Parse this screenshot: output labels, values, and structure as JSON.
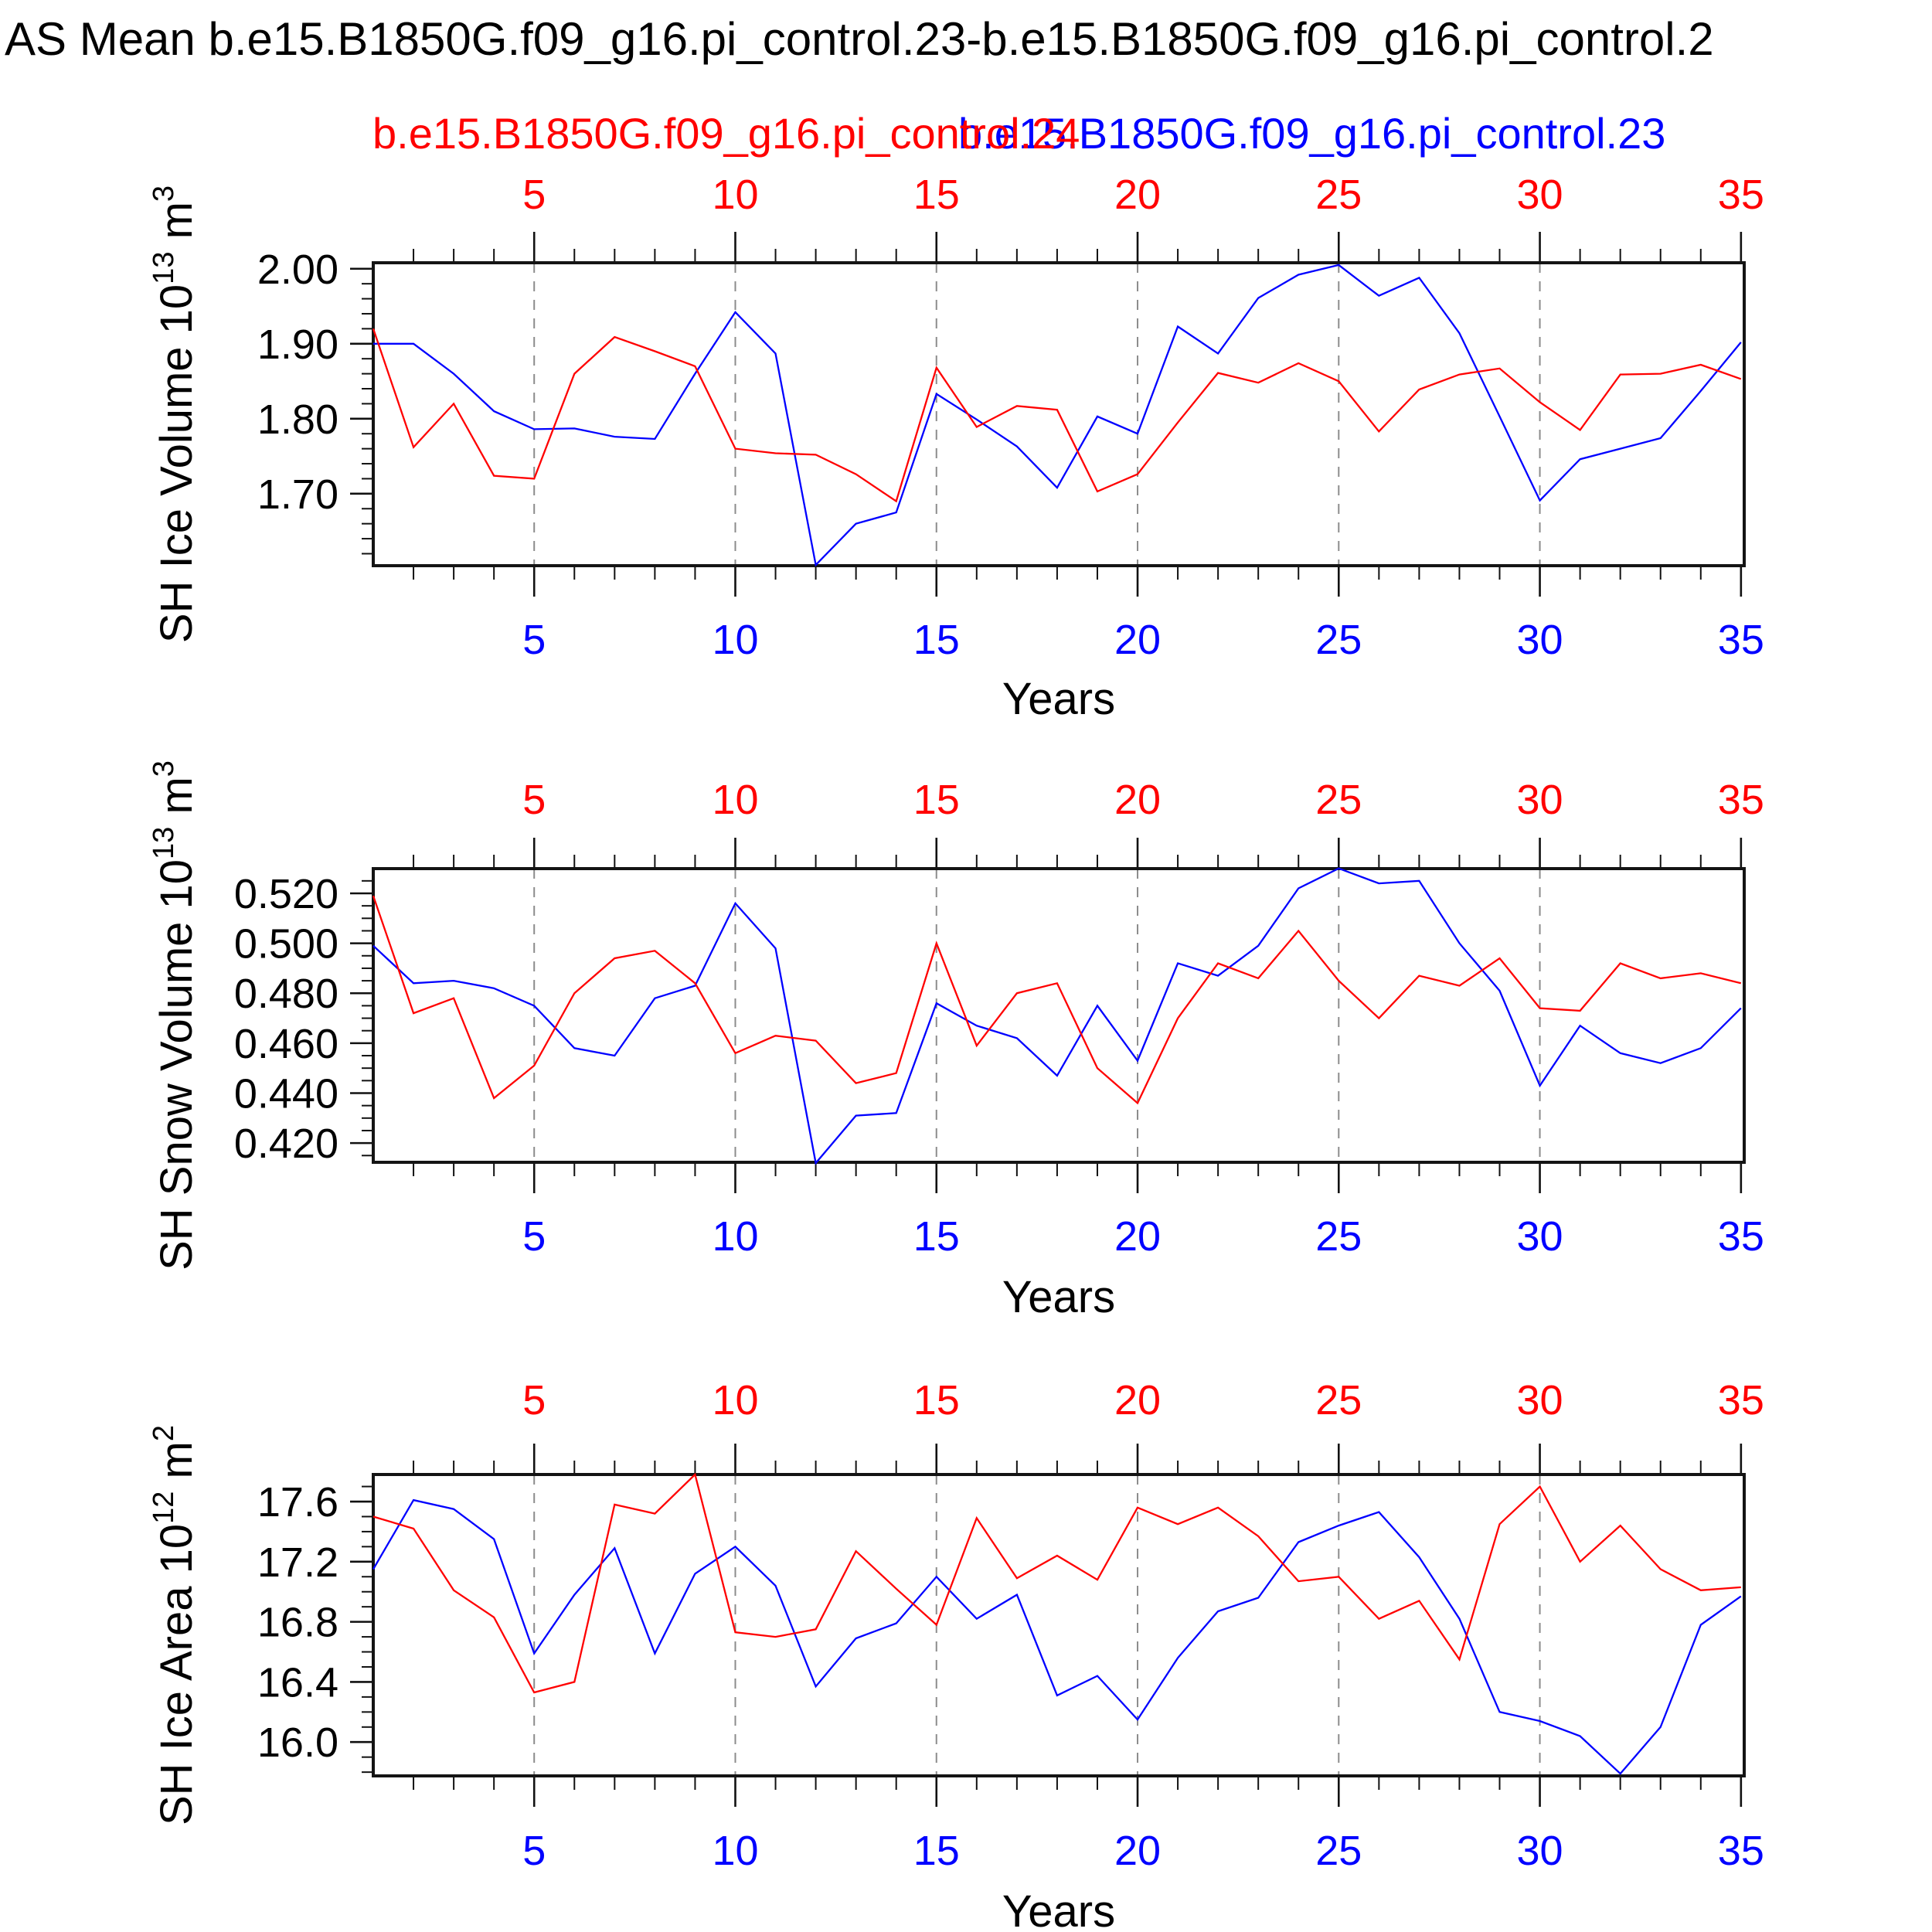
{
  "title": "AS Mean b.e15.B1850G.f09_g16.pi_control.23-b.e15.B1850G.f09_g16.pi_control.2",
  "legend": {
    "series_red_label": "b.e15.B1850G.f09_g16.pi_control.24",
    "series_blue_label": "b.e15.B1850G.f09_g16.pi_control.23",
    "red_color": "#ff0000",
    "blue_color": "#0000ff"
  },
  "chart_data": [
    {
      "type": "line",
      "title": "",
      "ylabel": "SH Ice Volume 10^13 m^3",
      "ylabel_parts": [
        [
          "t",
          "SH Ice Volume 10"
        ],
        [
          "s",
          "13"
        ],
        [
          "t",
          " m"
        ],
        [
          "s",
          "3"
        ]
      ],
      "xlabel": "Years",
      "xlim": [
        1,
        35.08
      ],
      "ylim": [
        1.604,
        2.008
      ],
      "x": [
        1,
        2,
        3,
        4,
        5,
        6,
        7,
        8,
        9,
        10,
        11,
        12,
        13,
        14,
        15,
        16,
        17,
        18,
        19,
        20,
        21,
        22,
        23,
        24,
        25,
        26,
        27,
        28,
        29,
        30,
        31,
        32,
        33,
        34,
        35
      ],
      "xtick_major": [
        5,
        10,
        15,
        20,
        25,
        30,
        35
      ],
      "xtick_labels": [
        "5",
        "10",
        "15",
        "20",
        "25",
        "30",
        "35"
      ],
      "grid_years": [
        5,
        10,
        15,
        20,
        25,
        30
      ],
      "ytick_values": [
        2.0,
        1.9,
        1.8,
        1.7
      ],
      "ytick_labels": [
        "2.00",
        "1.90",
        "1.80",
        "1.70"
      ],
      "yminor_step": 0.02,
      "grid_on": "dashed-vertical",
      "legend_position": "top-overlapping",
      "series": [
        {
          "name": "b.e15.B1850G.f09_g16.pi_control.24",
          "color": "#ff0000",
          "values": [
            1.92,
            1.762,
            1.82,
            1.724,
            1.72,
            1.86,
            1.909,
            1.89,
            1.87,
            1.76,
            1.754,
            1.752,
            1.726,
            1.69,
            1.868,
            1.789,
            1.817,
            1.812,
            1.703,
            1.726,
            1.795,
            1.861,
            1.848,
            1.874,
            1.85,
            1.783,
            1.839,
            1.859,
            1.867,
            1.822,
            1.785,
            1.859,
            1.86,
            1.872,
            1.853
          ]
        },
        {
          "name": "b.e15.B1850G.f09_g16.pi_control.23",
          "color": "#0000ff",
          "values": [
            1.9,
            1.9,
            1.86,
            1.81,
            1.786,
            1.787,
            1.776,
            1.773,
            1.86,
            1.942,
            1.887,
            1.605,
            1.66,
            1.675,
            1.833,
            1.799,
            1.763,
            1.708,
            1.803,
            1.78,
            1.923,
            1.887,
            1.961,
            1.992,
            2.005,
            1.964,
            1.988,
            1.914,
            1.803,
            1.691,
            1.746,
            1.76,
            1.774,
            1.837,
            1.902
          ]
        }
      ]
    },
    {
      "type": "line",
      "title": "",
      "ylabel": "SH Snow Volume 10^13 m^3",
      "ylabel_parts": [
        [
          "t",
          "SH Snow Volume 10"
        ],
        [
          "s",
          "13"
        ],
        [
          "t",
          " m"
        ],
        [
          "s",
          "3"
        ]
      ],
      "xlabel": "Years",
      "xlim": [
        1,
        35.08
      ],
      "ylim": [
        0.4123,
        0.5299
      ],
      "x": [
        1,
        2,
        3,
        4,
        5,
        6,
        7,
        8,
        9,
        10,
        11,
        12,
        13,
        14,
        15,
        16,
        17,
        18,
        19,
        20,
        21,
        22,
        23,
        24,
        25,
        26,
        27,
        28,
        29,
        30,
        31,
        32,
        33,
        34,
        35
      ],
      "xtick_major": [
        5,
        10,
        15,
        20,
        25,
        30,
        35
      ],
      "xtick_labels": [
        "5",
        "10",
        "15",
        "20",
        "25",
        "30",
        "35"
      ],
      "grid_years": [
        5,
        10,
        15,
        20,
        25,
        30
      ],
      "ytick_values": [
        0.52,
        0.5,
        0.48,
        0.46,
        0.44,
        0.42
      ],
      "ytick_labels": [
        "0.520",
        "0.500",
        "0.480",
        "0.460",
        "0.440",
        "0.420"
      ],
      "yminor_step": 0.005,
      "grid_on": "dashed-vertical",
      "legend_position": "top-overlapping",
      "series": [
        {
          "name": "b.e15.B1850G.f09_g16.pi_control.24",
          "color": "#ff0000",
          "values": [
            0.519,
            0.472,
            0.478,
            0.438,
            0.451,
            0.48,
            0.494,
            0.497,
            0.484,
            0.456,
            0.463,
            0.461,
            0.444,
            0.448,
            0.5,
            0.459,
            0.48,
            0.484,
            0.45,
            0.436,
            0.47,
            0.492,
            0.486,
            0.505,
            0.485,
            0.47,
            0.487,
            0.483,
            0.494,
            0.474,
            0.473,
            0.492,
            0.486,
            0.488,
            0.484
          ]
        },
        {
          "name": "b.e15.B1850G.f09_g16.pi_control.23",
          "color": "#0000ff",
          "values": [
            0.499,
            0.484,
            0.485,
            0.482,
            0.475,
            0.458,
            0.455,
            0.478,
            0.483,
            0.516,
            0.498,
            0.412,
            0.431,
            0.432,
            0.476,
            0.467,
            0.462,
            0.447,
            0.475,
            0.453,
            0.492,
            0.487,
            0.499,
            0.522,
            0.53,
            0.524,
            0.525,
            0.5,
            0.481,
            0.443,
            0.467,
            0.456,
            0.452,
            0.458,
            0.474
          ]
        }
      ]
    },
    {
      "type": "line",
      "title": "",
      "ylabel": "SH Ice Area 10^12 m^2",
      "ylabel_parts": [
        [
          "t",
          "SH Ice Area 10"
        ],
        [
          "s",
          "12"
        ],
        [
          "t",
          " m"
        ],
        [
          "s",
          "2"
        ]
      ],
      "xlabel": "Years",
      "xlim": [
        1,
        35.08
      ],
      "ylim": [
        15.775,
        17.78
      ],
      "x": [
        1,
        2,
        3,
        4,
        5,
        6,
        7,
        8,
        9,
        10,
        11,
        12,
        13,
        14,
        15,
        16,
        17,
        18,
        19,
        20,
        21,
        22,
        23,
        24,
        25,
        26,
        27,
        28,
        29,
        30,
        31,
        32,
        33,
        34,
        35
      ],
      "xtick_major": [
        5,
        10,
        15,
        20,
        25,
        30,
        35
      ],
      "xtick_labels": [
        "5",
        "10",
        "15",
        "20",
        "25",
        "30",
        "35"
      ],
      "grid_years": [
        5,
        10,
        15,
        20,
        25,
        30
      ],
      "ytick_values": [
        17.6,
        17.2,
        16.8,
        16.4,
        16.0
      ],
      "ytick_labels": [
        "17.6",
        "17.2",
        "16.8",
        "16.4",
        "16.0"
      ],
      "yminor_step": 0.1,
      "grid_on": "dashed-vertical",
      "legend_position": "top-overlapping",
      "series": [
        {
          "name": "b.e15.B1850G.f09_g16.pi_control.24",
          "color": "#ff0000",
          "values": [
            17.5,
            17.42,
            17.01,
            16.83,
            16.33,
            16.4,
            17.58,
            17.52,
            17.78,
            16.73,
            16.7,
            16.75,
            17.27,
            17.02,
            16.78,
            17.49,
            17.09,
            17.24,
            17.08,
            17.56,
            17.45,
            17.56,
            17.37,
            17.07,
            17.1,
            16.82,
            16.94,
            16.55,
            17.45,
            17.7,
            17.2,
            17.44,
            17.15,
            17.01,
            17.03
          ]
        },
        {
          "name": "b.e15.B1850G.f09_g16.pi_control.23",
          "color": "#0000ff",
          "values": [
            17.15,
            17.61,
            17.55,
            17.35,
            16.59,
            16.98,
            17.29,
            16.59,
            17.12,
            17.3,
            17.04,
            16.37,
            16.69,
            16.79,
            17.1,
            16.82,
            16.98,
            16.31,
            16.44,
            16.15,
            16.56,
            16.87,
            16.96,
            17.33,
            17.44,
            17.53,
            17.23,
            16.82,
            16.2,
            16.14,
            16.04,
            15.79,
            16.1,
            16.78,
            16.97
          ]
        }
      ]
    }
  ],
  "style": {
    "grid_color": "#8c8c8c",
    "axis_color": "#141414",
    "tick_color": "#111111",
    "text_color": "#000000"
  }
}
